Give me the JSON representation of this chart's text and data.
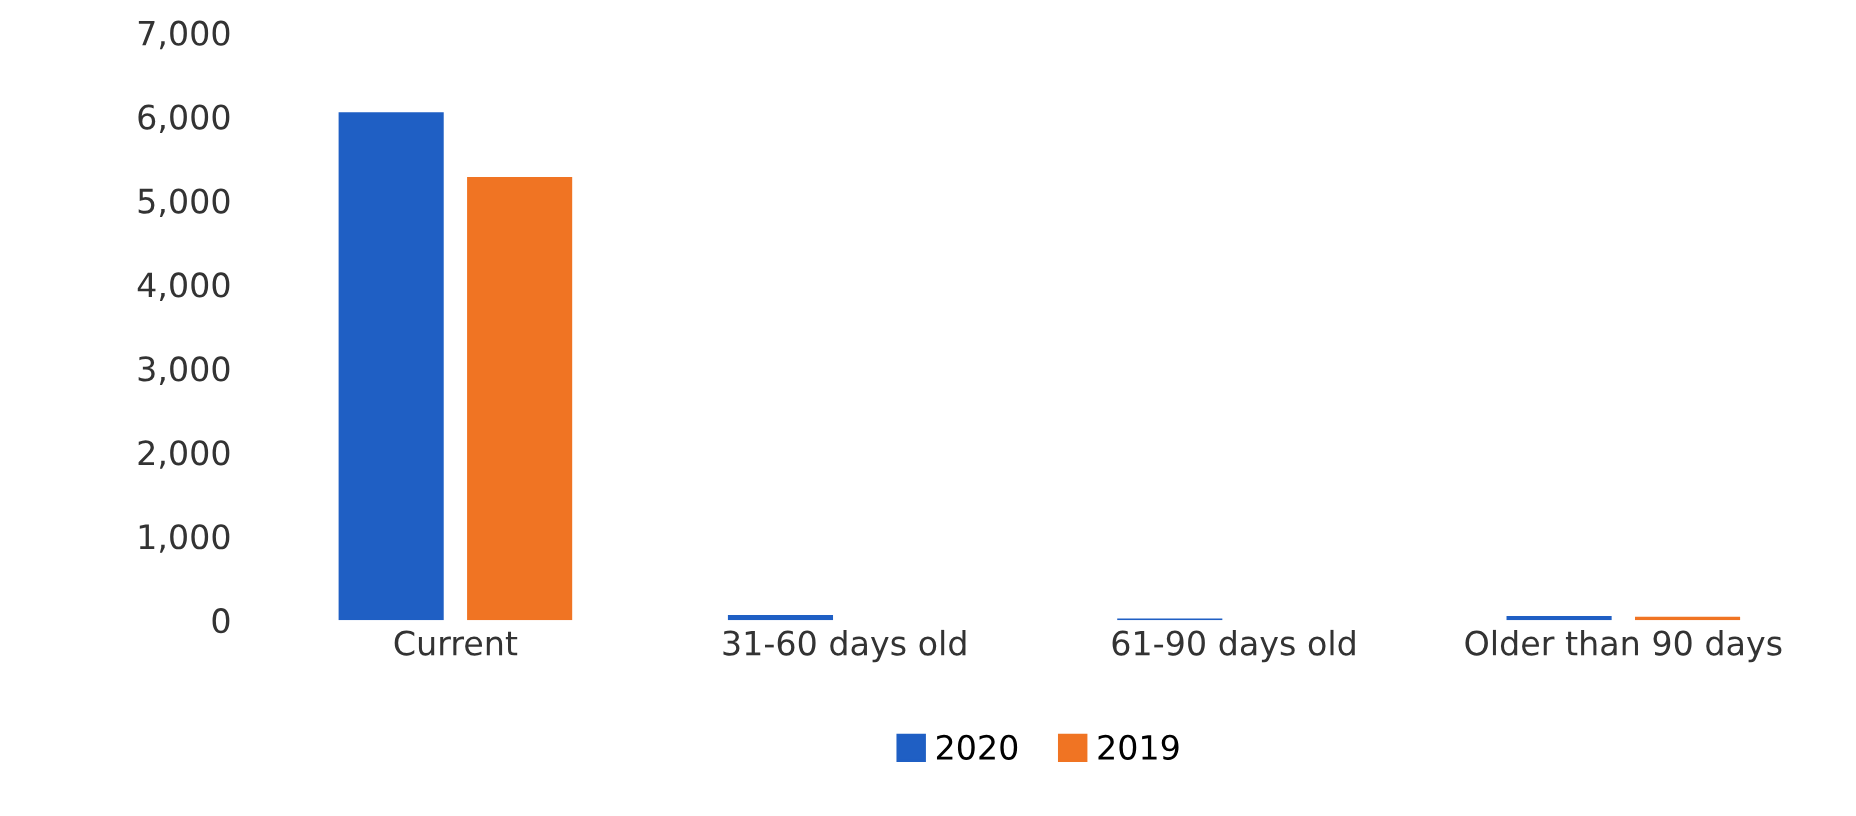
{
  "chart_data": {
    "type": "bar",
    "categories": [
      "Current",
      "31-60 days old",
      "61-90 days old",
      "Older than 90 days"
    ],
    "series": [
      {
        "name": "2020",
        "color": "#1f5fc4",
        "values": [
          6050,
          60,
          20,
          50
        ]
      },
      {
        "name": "2019",
        "color": "#f07423",
        "values": [
          5280,
          0,
          0,
          40
        ]
      }
    ],
    "ylim": [
      0,
      7000
    ],
    "yticks": [
      {
        "value": 0,
        "label": "0"
      },
      {
        "value": 1000,
        "label": "1,000"
      },
      {
        "value": 2000,
        "label": "2,000"
      },
      {
        "value": 3000,
        "label": "3,000"
      },
      {
        "value": 4000,
        "label": "4,000"
      },
      {
        "value": 5000,
        "label": "5,000"
      },
      {
        "value": 6000,
        "label": "6,000"
      },
      {
        "value": 7000,
        "label": "7,000"
      }
    ],
    "grid": false,
    "legend": "bottom"
  }
}
